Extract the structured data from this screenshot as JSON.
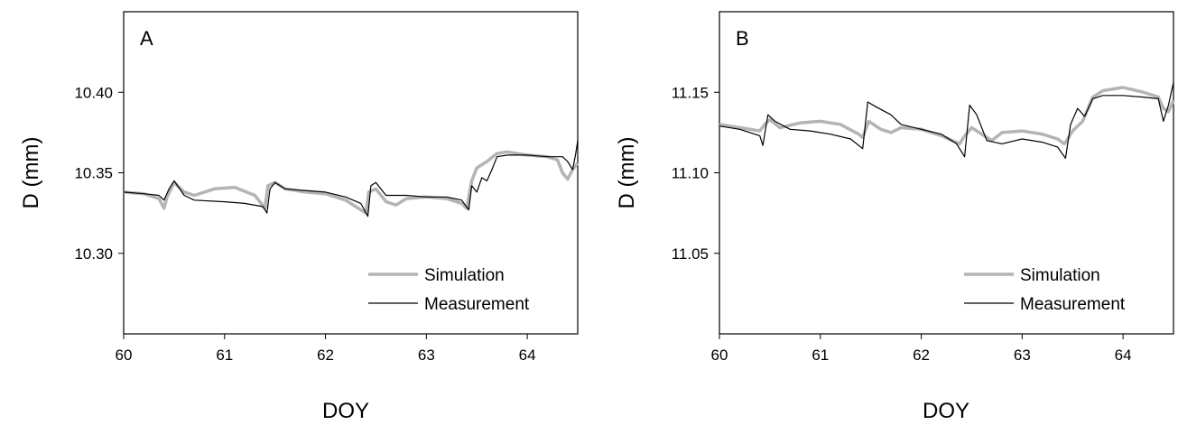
{
  "chart_data": [
    {
      "type": "line",
      "panel_label": "A",
      "xlabel": "DOY",
      "ylabel": "D (mm)",
      "xlim": [
        60,
        64.5
      ],
      "ylim": [
        10.25,
        10.45
      ],
      "x_ticks": [
        60,
        61,
        62,
        63,
        64
      ],
      "x_tick_labels": [
        "60",
        "61",
        "62",
        "63",
        "64"
      ],
      "y_ticks": [
        10.3,
        10.35,
        10.4
      ],
      "y_tick_labels": [
        "10.30",
        "10.35",
        "10.40"
      ],
      "grid": false,
      "legend_position": "bottom-right",
      "series": [
        {
          "name": "Simulation",
          "color": "#b4b4b4",
          "x": [
            60.0,
            60.2,
            60.35,
            60.4,
            60.43,
            60.5,
            60.6,
            60.7,
            60.9,
            61.1,
            61.3,
            61.4,
            61.43,
            61.5,
            61.6,
            61.8,
            62.0,
            62.2,
            62.3,
            62.4,
            62.43,
            62.5,
            62.6,
            62.7,
            62.8,
            63.0,
            63.2,
            63.35,
            63.4,
            63.45,
            63.5,
            63.6,
            63.7,
            63.8,
            64.0,
            64.2,
            64.3,
            64.35,
            64.4,
            64.45,
            64.5
          ],
          "y": [
            10.338,
            10.337,
            10.334,
            10.328,
            10.335,
            10.344,
            10.338,
            10.336,
            10.34,
            10.341,
            10.336,
            10.328,
            10.342,
            10.344,
            10.34,
            10.338,
            10.337,
            10.333,
            10.329,
            10.325,
            10.338,
            10.34,
            10.332,
            10.33,
            10.334,
            10.335,
            10.334,
            10.331,
            10.328,
            10.345,
            10.353,
            10.357,
            10.362,
            10.363,
            10.361,
            10.36,
            10.358,
            10.35,
            10.346,
            10.352,
            10.356
          ]
        },
        {
          "name": "Measurement",
          "color": "#000000",
          "x": [
            60.0,
            60.2,
            60.35,
            60.4,
            60.45,
            60.5,
            60.6,
            60.7,
            61.0,
            61.2,
            61.38,
            61.42,
            61.45,
            61.5,
            61.6,
            61.8,
            62.0,
            62.2,
            62.35,
            62.42,
            62.45,
            62.5,
            62.6,
            62.8,
            63.0,
            63.2,
            63.35,
            63.42,
            63.45,
            63.5,
            63.55,
            63.6,
            63.65,
            63.7,
            63.8,
            64.0,
            64.2,
            64.35,
            64.4,
            64.45,
            64.48,
            64.5
          ],
          "y": [
            10.338,
            10.337,
            10.336,
            10.333,
            10.34,
            10.345,
            10.336,
            10.333,
            10.332,
            10.331,
            10.329,
            10.325,
            10.34,
            10.344,
            10.34,
            10.339,
            10.338,
            10.335,
            10.331,
            10.323,
            10.342,
            10.344,
            10.336,
            10.336,
            10.335,
            10.335,
            10.333,
            10.327,
            10.342,
            10.338,
            10.347,
            10.345,
            10.352,
            10.36,
            10.361,
            10.361,
            10.36,
            10.36,
            10.357,
            10.352,
            10.362,
            10.37
          ]
        }
      ]
    },
    {
      "type": "line",
      "panel_label": "B",
      "xlabel": "DOY",
      "ylabel": "D (mm)",
      "xlim": [
        60,
        64.5
      ],
      "ylim": [
        11.0,
        11.2
      ],
      "x_ticks": [
        60,
        61,
        62,
        63,
        64
      ],
      "x_tick_labels": [
        "60",
        "61",
        "62",
        "63",
        "64"
      ],
      "y_ticks": [
        11.05,
        11.1,
        11.15
      ],
      "y_tick_labels": [
        "11.05",
        "11.10",
        "11.15"
      ],
      "grid": false,
      "legend_position": "bottom-right",
      "series": [
        {
          "name": "Simulation",
          "color": "#b4b4b4",
          "x": [
            60.0,
            60.2,
            60.4,
            60.45,
            60.5,
            60.6,
            60.8,
            61.0,
            61.2,
            61.38,
            61.42,
            61.48,
            61.6,
            61.7,
            61.8,
            62.0,
            62.2,
            62.38,
            62.42,
            62.5,
            62.6,
            62.7,
            62.8,
            63.0,
            63.2,
            63.35,
            63.42,
            63.5,
            63.6,
            63.7,
            63.8,
            64.0,
            64.2,
            64.35,
            64.4,
            64.45,
            64.5
          ],
          "y": [
            11.13,
            11.128,
            11.126,
            11.13,
            11.133,
            11.128,
            11.131,
            11.132,
            11.13,
            11.124,
            11.122,
            11.132,
            11.127,
            11.125,
            11.128,
            11.127,
            11.123,
            11.118,
            11.122,
            11.128,
            11.124,
            11.12,
            11.125,
            11.126,
            11.124,
            11.121,
            11.118,
            11.126,
            11.132,
            11.147,
            11.151,
            11.153,
            11.15,
            11.147,
            11.14,
            11.138,
            11.145
          ]
        },
        {
          "name": "Measurement",
          "color": "#000000",
          "x": [
            60.0,
            60.2,
            60.4,
            60.43,
            60.48,
            60.55,
            60.7,
            60.9,
            61.1,
            61.3,
            61.42,
            61.47,
            61.55,
            61.7,
            61.8,
            62.0,
            62.2,
            62.35,
            62.43,
            62.48,
            62.55,
            62.65,
            62.8,
            63.0,
            63.2,
            63.35,
            63.43,
            63.48,
            63.55,
            63.62,
            63.7,
            63.8,
            64.0,
            64.2,
            64.35,
            64.4,
            64.45,
            64.5
          ],
          "y": [
            11.129,
            11.127,
            11.123,
            11.117,
            11.136,
            11.132,
            11.127,
            11.126,
            11.124,
            11.121,
            11.115,
            11.144,
            11.141,
            11.136,
            11.13,
            11.127,
            11.124,
            11.118,
            11.11,
            11.142,
            11.136,
            11.12,
            11.118,
            11.121,
            11.119,
            11.116,
            11.109,
            11.13,
            11.14,
            11.135,
            11.146,
            11.148,
            11.148,
            11.147,
            11.146,
            11.132,
            11.142,
            11.156
          ]
        }
      ]
    }
  ]
}
